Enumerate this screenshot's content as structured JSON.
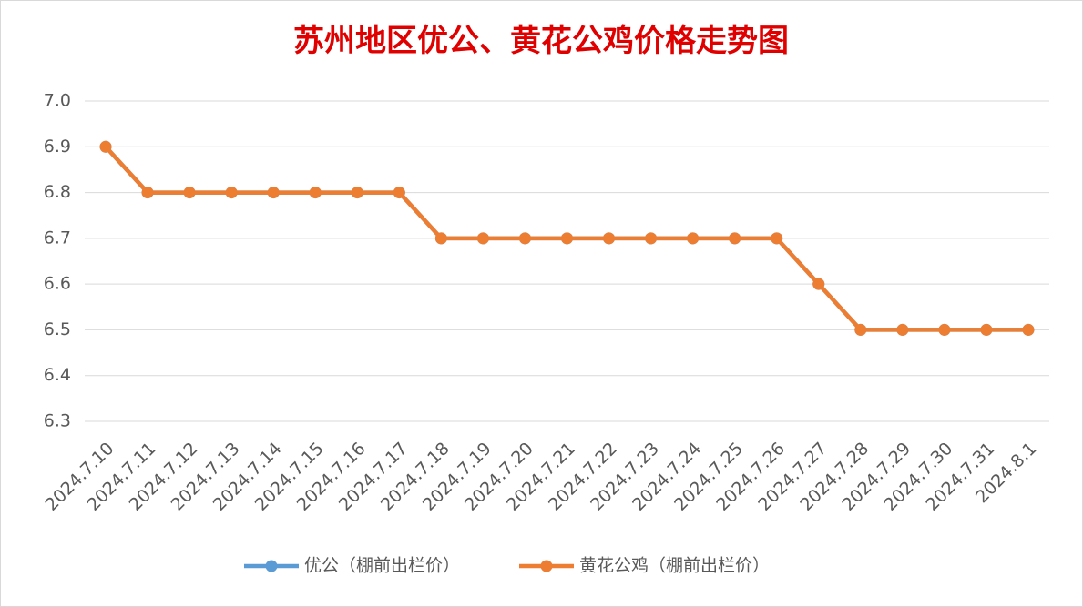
{
  "chart_data": {
    "type": "line",
    "title": "苏州地区优公、黄花公鸡价格走势图",
    "categories": [
      "2024.7.10",
      "2024.7.11",
      "2024.7.12",
      "2024.7.13",
      "2024.7.14",
      "2024.7.15",
      "2024.7.16",
      "2024.7.17",
      "2024.7.18",
      "2024.7.19",
      "2024.7.20",
      "2024.7.21",
      "2024.7.22",
      "2024.7.23",
      "2024.7.24",
      "2024.7.25",
      "2024.7.26",
      "2024.7.27",
      "2024.7.28",
      "2024.7.29",
      "2024.7.30",
      "2024.7.31",
      "2024.8.1"
    ],
    "series": [
      {
        "name": "优公（棚前出栏价）",
        "color": "#5b9bd5",
        "values": [
          6.9,
          6.8,
          6.8,
          6.8,
          6.8,
          6.8,
          6.8,
          6.8,
          6.7,
          6.7,
          6.7,
          6.7,
          6.7,
          6.7,
          6.7,
          6.7,
          6.7,
          6.6,
          6.5,
          6.5,
          6.5,
          6.5,
          6.5
        ]
      },
      {
        "name": "黄花公鸡（棚前出栏价）",
        "color": "#ed7d31",
        "values": [
          6.9,
          6.8,
          6.8,
          6.8,
          6.8,
          6.8,
          6.8,
          6.8,
          6.7,
          6.7,
          6.7,
          6.7,
          6.7,
          6.7,
          6.7,
          6.7,
          6.7,
          6.6,
          6.5,
          6.5,
          6.5,
          6.5,
          6.5
        ]
      }
    ],
    "ylim": [
      6.3,
      7.0
    ],
    "yticks": [
      6.3,
      6.4,
      6.5,
      6.6,
      6.7,
      6.8,
      6.9,
      {
        "value": 7.0,
        "label": "7.0"
      }
    ],
    "grid": true,
    "legend": "bottom"
  }
}
